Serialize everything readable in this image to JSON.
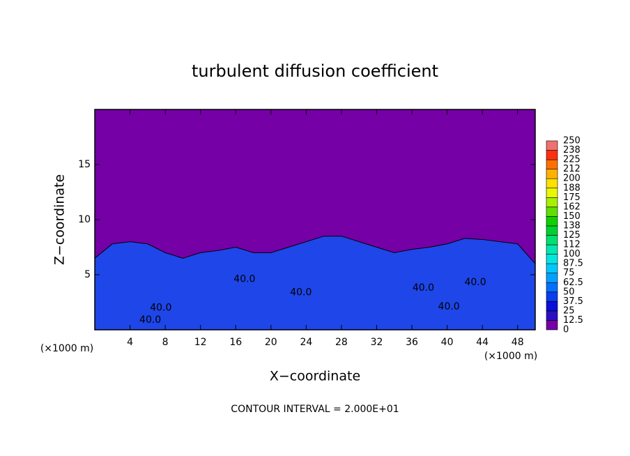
{
  "chart_data": {
    "type": "contour",
    "title": "turbulent diffusion coefficient",
    "xlabel": "X−coordinate",
    "ylabel": "Z−coordinate",
    "x_unit": "(×1000 m)",
    "y_unit": "(×1000 m)",
    "annotation": "CONTOUR INTERVAL = 2.000E+01",
    "xlim": [
      0,
      50
    ],
    "ylim": [
      0,
      20
    ],
    "xticks": [
      4,
      8,
      12,
      16,
      20,
      24,
      28,
      32,
      36,
      40,
      44,
      48
    ],
    "yticks": [
      5,
      10,
      15
    ],
    "background_color": "#7400a6",
    "x": [
      0,
      2,
      4,
      6,
      8,
      10,
      12,
      14,
      16,
      18,
      20,
      22,
      24,
      26,
      28,
      30,
      32,
      34,
      36,
      38,
      40,
      42,
      44,
      46,
      48,
      50
    ],
    "values": [
      6.5,
      7.8,
      8,
      7.8,
      7,
      6.5,
      7,
      7.2,
      7.5,
      7,
      7,
      7.5,
      8,
      8.5,
      8.5,
      8,
      7.5,
      7,
      7.3,
      7.5,
      7.8,
      8.3,
      8.2,
      8,
      7.8,
      6
    ],
    "color": "#1e46e8",
    "contour_labels": [
      {
        "label": "40.0",
        "x": 6.3,
        "y": 0.9
      },
      {
        "label": "40.0",
        "x": 7.5,
        "y": 2.0
      },
      {
        "label": "40.0",
        "x": 17,
        "y": 4.6
      },
      {
        "label": "40.0",
        "x": 23.4,
        "y": 3.4
      },
      {
        "label": "40.0",
        "x": 37.3,
        "y": 3.8
      },
      {
        "label": "40.0",
        "x": 40.2,
        "y": 2.1
      },
      {
        "label": "40.0",
        "x": 43.2,
        "y": 4.3
      }
    ],
    "colorbar": {
      "levels": [
        0,
        12.5,
        25,
        37.5,
        50,
        62.5,
        75,
        87.5,
        100,
        112,
        125,
        138,
        150,
        162,
        175,
        188,
        200,
        212,
        225,
        238,
        250
      ],
      "colors": [
        "#7400a6",
        "#2a10c0",
        "#0a10d8",
        "#0a3cf0",
        "#0070ff",
        "#00a0ff",
        "#00c8ff",
        "#00e6e0",
        "#00e8b0",
        "#00e070",
        "#00d030",
        "#10d000",
        "#60e000",
        "#a8f000",
        "#e8f800",
        "#ffe000",
        "#ffb000",
        "#ff7000",
        "#ff3010",
        "#f07070"
      ]
    }
  }
}
